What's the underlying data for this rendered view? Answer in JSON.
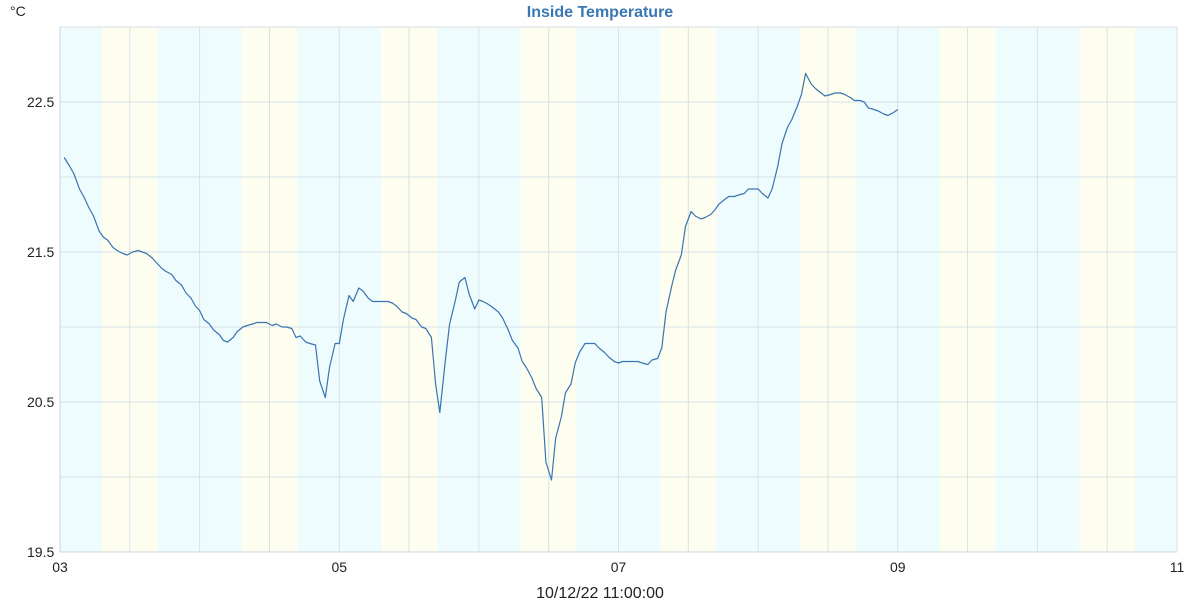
{
  "chart_data": {
    "type": "line",
    "title": "Inside Temperature",
    "unit_label": "°C",
    "footer": "10/12/22 11:00:00",
    "xlabel": "",
    "ylabel": "",
    "xlim": [
      3,
      11
    ],
    "ylim": [
      19.5,
      23.0
    ],
    "x_ticks": [
      {
        "value": 3,
        "label": "03"
      },
      {
        "value": 5,
        "label": "05"
      },
      {
        "value": 7,
        "label": "07"
      },
      {
        "value": 9,
        "label": "09"
      },
      {
        "value": 11,
        "label": "11"
      }
    ],
    "y_ticks": [
      {
        "value": 19.5,
        "label": "19.5"
      },
      {
        "value": 20.5,
        "label": "20.5"
      },
      {
        "value": 21.5,
        "label": "21.5"
      },
      {
        "value": 22.5,
        "label": "22.5"
      }
    ],
    "grid": true,
    "colors": {
      "line": "#3a74b0",
      "night_band": "#eefcfd",
      "day_band": "#fdfeef",
      "grid": "#d6e1e8",
      "title": "#3a78b3"
    },
    "day_bands": [
      [
        3.3,
        3.7
      ],
      [
        4.3,
        4.7
      ],
      [
        5.3,
        5.7
      ],
      [
        6.3,
        6.7
      ],
      [
        7.3,
        7.7
      ],
      [
        8.3,
        8.7
      ],
      [
        9.3,
        9.7
      ],
      [
        10.3,
        10.7
      ]
    ],
    "series": [
      {
        "values": [
          [
            3.03,
            22.13
          ],
          [
            3.07,
            22.07
          ],
          [
            3.1,
            22.02
          ],
          [
            3.14,
            21.92
          ],
          [
            3.17,
            21.87
          ],
          [
            3.21,
            21.79
          ],
          [
            3.24,
            21.74
          ],
          [
            3.28,
            21.64
          ],
          [
            3.31,
            21.6
          ],
          [
            3.34,
            21.58
          ],
          [
            3.38,
            21.53
          ],
          [
            3.41,
            21.51
          ],
          [
            3.45,
            21.49
          ],
          [
            3.48,
            21.48
          ],
          [
            3.52,
            21.5
          ],
          [
            3.56,
            21.51
          ],
          [
            3.59,
            21.5
          ],
          [
            3.62,
            21.49
          ],
          [
            3.66,
            21.46
          ],
          [
            3.69,
            21.43
          ],
          [
            3.73,
            21.39
          ],
          [
            3.76,
            21.37
          ],
          [
            3.8,
            21.35
          ],
          [
            3.83,
            21.31
          ],
          [
            3.87,
            21.28
          ],
          [
            3.9,
            21.23
          ],
          [
            3.94,
            21.19
          ],
          [
            3.97,
            21.14
          ],
          [
            4.0,
            21.11
          ],
          [
            4.03,
            21.05
          ],
          [
            4.07,
            21.02
          ],
          [
            4.1,
            20.98
          ],
          [
            4.14,
            20.95
          ],
          [
            4.17,
            20.91
          ],
          [
            4.2,
            20.9
          ],
          [
            4.24,
            20.93
          ],
          [
            4.27,
            20.97
          ],
          [
            4.31,
            21.0
          ],
          [
            4.34,
            21.01
          ],
          [
            4.38,
            21.02
          ],
          [
            4.41,
            21.03
          ],
          [
            4.45,
            21.03
          ],
          [
            4.48,
            21.03
          ],
          [
            4.52,
            21.01
          ],
          [
            4.55,
            21.02
          ],
          [
            4.59,
            21.0
          ],
          [
            4.62,
            21.0
          ],
          [
            4.66,
            20.99
          ],
          [
            4.69,
            20.93
          ],
          [
            4.72,
            20.94
          ],
          [
            4.76,
            20.9
          ],
          [
            4.79,
            20.89
          ],
          [
            4.83,
            20.88
          ],
          [
            4.86,
            20.64
          ],
          [
            4.9,
            20.53
          ],
          [
            4.93,
            20.73
          ],
          [
            4.97,
            20.89
          ],
          [
            5.0,
            20.89
          ],
          [
            5.03,
            21.05
          ],
          [
            5.07,
            21.21
          ],
          [
            5.1,
            21.17
          ],
          [
            5.14,
            21.26
          ],
          [
            5.17,
            21.24
          ],
          [
            5.21,
            21.19
          ],
          [
            5.24,
            21.17
          ],
          [
            5.28,
            21.17
          ],
          [
            5.31,
            21.17
          ],
          [
            5.35,
            21.17
          ],
          [
            5.38,
            21.16
          ],
          [
            5.41,
            21.14
          ],
          [
            5.45,
            21.1
          ],
          [
            5.48,
            21.09
          ],
          [
            5.52,
            21.06
          ],
          [
            5.55,
            21.05
          ],
          [
            5.59,
            21.0
          ],
          [
            5.62,
            20.99
          ],
          [
            5.66,
            20.93
          ],
          [
            5.69,
            20.62
          ],
          [
            5.72,
            20.43
          ],
          [
            5.76,
            20.78
          ],
          [
            5.79,
            21.02
          ],
          [
            5.83,
            21.17
          ],
          [
            5.86,
            21.3
          ],
          [
            5.9,
            21.33
          ],
          [
            5.93,
            21.22
          ],
          [
            5.97,
            21.12
          ],
          [
            6.0,
            21.18
          ],
          [
            6.03,
            21.17
          ],
          [
            6.07,
            21.15
          ],
          [
            6.1,
            21.13
          ],
          [
            6.14,
            21.1
          ],
          [
            6.17,
            21.06
          ],
          [
            6.21,
            20.98
          ],
          [
            6.24,
            20.91
          ],
          [
            6.28,
            20.86
          ],
          [
            6.31,
            20.77
          ],
          [
            6.34,
            20.73
          ],
          [
            6.38,
            20.66
          ],
          [
            6.41,
            20.59
          ],
          [
            6.45,
            20.53
          ],
          [
            6.48,
            20.1
          ],
          [
            6.52,
            19.98
          ],
          [
            6.55,
            20.26
          ],
          [
            6.59,
            20.4
          ],
          [
            6.62,
            20.56
          ],
          [
            6.66,
            20.62
          ],
          [
            6.69,
            20.76
          ],
          [
            6.72,
            20.83
          ],
          [
            6.76,
            20.89
          ],
          [
            6.79,
            20.89
          ],
          [
            6.83,
            20.89
          ],
          [
            6.86,
            20.86
          ],
          [
            6.9,
            20.83
          ],
          [
            6.93,
            20.8
          ],
          [
            6.97,
            20.77
          ],
          [
            7.0,
            20.76
          ],
          [
            7.03,
            20.77
          ],
          [
            7.07,
            20.77
          ],
          [
            7.1,
            20.77
          ],
          [
            7.14,
            20.77
          ],
          [
            7.17,
            20.76
          ],
          [
            7.21,
            20.75
          ],
          [
            7.24,
            20.78
          ],
          [
            7.28,
            20.79
          ],
          [
            7.31,
            20.86
          ],
          [
            7.34,
            21.1
          ],
          [
            7.38,
            21.27
          ],
          [
            7.41,
            21.38
          ],
          [
            7.45,
            21.48
          ],
          [
            7.48,
            21.67
          ],
          [
            7.52,
            21.77
          ],
          [
            7.55,
            21.74
          ],
          [
            7.59,
            21.72
          ],
          [
            7.62,
            21.73
          ],
          [
            7.66,
            21.75
          ],
          [
            7.69,
            21.78
          ],
          [
            7.72,
            21.82
          ],
          [
            7.76,
            21.85
          ],
          [
            7.79,
            21.87
          ],
          [
            7.83,
            21.87
          ],
          [
            7.86,
            21.88
          ],
          [
            7.9,
            21.89
          ],
          [
            7.93,
            21.92
          ],
          [
            7.97,
            21.92
          ],
          [
            8.0,
            21.92
          ],
          [
            8.03,
            21.89
          ],
          [
            8.07,
            21.86
          ],
          [
            8.1,
            21.92
          ],
          [
            8.14,
            22.07
          ],
          [
            8.17,
            22.22
          ],
          [
            8.21,
            22.33
          ],
          [
            8.24,
            22.38
          ],
          [
            8.28,
            22.47
          ],
          [
            8.31,
            22.55
          ],
          [
            8.34,
            22.69
          ],
          [
            8.38,
            22.62
          ],
          [
            8.41,
            22.59
          ],
          [
            8.45,
            22.56
          ],
          [
            8.48,
            22.54
          ],
          [
            8.52,
            22.55
          ],
          [
            8.55,
            22.56
          ],
          [
            8.59,
            22.56
          ],
          [
            8.62,
            22.55
          ],
          [
            8.66,
            22.53
          ],
          [
            8.69,
            22.51
          ],
          [
            8.73,
            22.51
          ],
          [
            8.76,
            22.5
          ],
          [
            8.79,
            22.46
          ],
          [
            8.83,
            22.45
          ],
          [
            8.86,
            22.44
          ],
          [
            8.9,
            22.42
          ],
          [
            8.93,
            22.41
          ],
          [
            8.97,
            22.43
          ],
          [
            9.0,
            22.45
          ]
        ]
      }
    ]
  }
}
